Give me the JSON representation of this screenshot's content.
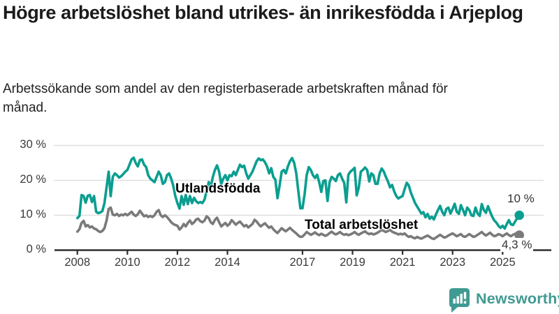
{
  "header": {
    "title": "Högre arbetslöshet bland utrikes- än inrikesfödda i Arjeplog",
    "subtitle": "Arbetssökande som andel av den registerbaserade arbetskraften månad för månad."
  },
  "chart_data": {
    "type": "line",
    "title": "Högre arbetslöshet bland utrikes- än inrikesfödda i Arjeplog",
    "subtitle": "Arbetssökande som andel av den registerbaserade arbetskraften månad för månad.",
    "unit": "%",
    "x_start": "2008-01",
    "x_end": "2025-09",
    "x_interval": "monthly",
    "ylim": [
      0,
      30
    ],
    "grid": "horizontal",
    "legend_position": "inline-labels",
    "yticks": [
      {
        "label": "30 %",
        "value": 30
      },
      {
        "label": "20 %",
        "value": 20
      },
      {
        "label": "10 %",
        "value": 10
      },
      {
        "label": "0 %",
        "value": 0
      }
    ],
    "xticks": [
      {
        "label": "2008",
        "year": 2008
      },
      {
        "label": "2010",
        "year": 2010
      },
      {
        "label": "2012",
        "year": 2012
      },
      {
        "label": "2014",
        "year": 2014
      },
      {
        "label": "2017",
        "year": 2017
      },
      {
        "label": "2019",
        "year": 2019
      },
      {
        "label": "2021",
        "year": 2021
      },
      {
        "label": "2023",
        "year": 2023
      },
      {
        "label": "2025",
        "year": 2025
      }
    ],
    "series": [
      {
        "name": "Utlandsfödda",
        "color": "#0a9e90",
        "end_label": "10 %",
        "end_value": 10,
        "values": [
          9.2,
          9.8,
          15.8,
          15.5,
          13.6,
          15.6,
          15.8,
          13.8,
          15.5,
          11,
          10.6,
          10.8,
          11.2,
          13.5,
          18,
          22.5,
          15.5,
          21,
          22,
          21.5,
          20.8,
          21.2,
          21.8,
          22.5,
          23,
          24.5,
          26,
          26.5,
          25,
          24,
          25.8,
          26,
          24.5,
          23.8,
          21.5,
          20.5,
          20,
          19.5,
          21,
          22.5,
          21.5,
          19,
          19.5,
          21.5,
          22,
          20.5,
          18.5,
          15.5,
          13.5,
          11.9,
          15.5,
          13,
          15.8,
          13.2,
          15.5,
          13.5,
          15,
          14,
          13.5,
          13.8,
          13.5,
          14.5,
          17,
          19.5,
          18,
          21,
          23,
          24.3,
          22.5,
          18.9,
          20.5,
          21.5,
          20,
          21.5,
          21.2,
          22.5,
          21.5,
          23,
          24.5,
          23.8,
          24.2,
          22,
          20.5,
          21.5,
          22.5,
          24,
          25.5,
          26.3,
          25.8,
          26,
          25.2,
          24,
          22,
          23.5,
          21,
          20.2,
          14.9,
          18.5,
          22.5,
          23,
          22,
          24,
          25.5,
          26.4,
          25,
          22,
          17,
          12,
          12,
          16,
          21.5,
          23.8,
          23,
          21.5,
          20.7,
          21.6,
          19.5,
          16.7,
          19.8,
          20,
          14.1,
          19.5,
          21,
          20.5,
          19.8,
          21.5,
          22,
          20.5,
          19.3,
          13.7,
          21.6,
          22.5,
          23,
          23.6,
          15.7,
          18,
          22.5,
          23,
          23.7,
          23,
          19.7,
          22,
          21.5,
          19,
          19,
          22,
          23.4,
          22.5,
          21,
          19.7,
          18,
          18.7,
          16.8,
          15.5,
          14.8,
          15.2,
          15.5,
          17.5,
          19.3,
          18.5,
          16.5,
          15,
          13.5,
          12.5,
          11.5,
          10.5,
          10.9,
          9.4,
          10.4,
          9,
          9.6,
          8.8,
          10.2,
          11.5,
          12.7,
          11,
          10,
          11.8,
          12.2,
          10.5,
          11.8,
          13.3,
          11,
          10.4,
          12.9,
          11.5,
          10,
          12.2,
          11.5,
          10,
          9.8,
          12.2,
          10.5,
          9.8,
          13.2,
          11.5,
          10.7,
          12.6,
          11,
          9.6,
          8.5,
          7.9,
          7,
          6.4,
          7,
          6.2,
          7.5,
          8.6,
          7.4,
          7.2,
          8.2,
          9.2,
          10
        ]
      },
      {
        "name": "Total arbetslöshet",
        "color": "#7a7a7a",
        "end_label": "4,3 %",
        "end_value": 4.3,
        "values": [
          5.3,
          6,
          7.8,
          8.4,
          6.8,
          7.2,
          6.5,
          6.8,
          6.2,
          6,
          5.5,
          5.2,
          5.5,
          6.3,
          8.5,
          11.8,
          12.2,
          10.2,
          10,
          10.4,
          9.8,
          10.2,
          10,
          10.4,
          10,
          10.5,
          11,
          10.2,
          9.8,
          10.3,
          11.3,
          10.5,
          9.7,
          10,
          9.5,
          9.8,
          9.5,
          10,
          11,
          11.5,
          10,
          9.5,
          10,
          9.5,
          8.8,
          8,
          7.5,
          7.2,
          7,
          5.9,
          6.5,
          7.5,
          6.8,
          7.8,
          8.5,
          7.5,
          8,
          8.8,
          9,
          8.3,
          8,
          8.5,
          9.7,
          9.2,
          8,
          7.5,
          8.7,
          9.3,
          8,
          6.8,
          7.3,
          7.8,
          7,
          7.5,
          8.6,
          8,
          7.3,
          7.8,
          8.2,
          7.5,
          6.8,
          7.2,
          6.5,
          7,
          7.5,
          8.7,
          8.2,
          7.4,
          6.8,
          7.3,
          7.7,
          7,
          6.4,
          6.8,
          6,
          5.4,
          4.9,
          5.6,
          6.3,
          5.8,
          5.4,
          5.9,
          6.4,
          5.8,
          5.3,
          4.8,
          4.2,
          3.8,
          3.9,
          4.5,
          5.2,
          4.8,
          4.4,
          4.7,
          5.1,
          4.6,
          4.3,
          4.7,
          4.4,
          4.1,
          4.4,
          4.9,
          5.3,
          4.8,
          4.5,
          4.8,
          5.2,
          4.7,
          4.4,
          4.6,
          4.3,
          4.5,
          4.8,
          5.2,
          4.7,
          4.4,
          4.8,
          5.1,
          5.4,
          4.9,
          4.6,
          4.8,
          4.5,
          4.7,
          5,
          5.4,
          5.8,
          5.5,
          5.2,
          5.5,
          5.8,
          5.3,
          5,
          4.8,
          4.5,
          4.7,
          4.5,
          4.8,
          4.2,
          3.8,
          4,
          3.6,
          3.4,
          3.8,
          3.5,
          3.3,
          3.6,
          3.9,
          4.2,
          3.8,
          3.4,
          3.2,
          3.6,
          4,
          4.4,
          4,
          3.6,
          3.8,
          4.2,
          4.5,
          4.8,
          4.4,
          4,
          4.3,
          4.6,
          4,
          3.8,
          4.2,
          4.6,
          4.2,
          3.8,
          4,
          4.4,
          4.8,
          5.2,
          4.6,
          4.2,
          4.6,
          5,
          4.4,
          4,
          4.2,
          4.6,
          4.4,
          4,
          4.4,
          4.8,
          4.3,
          4,
          4.4,
          4.7,
          4.5,
          4.3
        ]
      }
    ],
    "colors": {
      "axis": "#2e2e2e",
      "grid": "#e0e0e0",
      "tick_text": "#3a3a3a"
    }
  },
  "footer": {
    "brand": "Newsworthy",
    "brand_color": "#3f9a92",
    "logo_icon": "bar-chart-speech-bubble-icon"
  }
}
